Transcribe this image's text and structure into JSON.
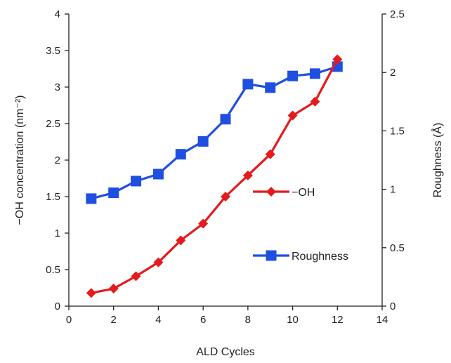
{
  "chart_data": {
    "type": "line",
    "xlabel": "ALD Cycles",
    "ylabel_left": "−OH concentration (nm⁻²)",
    "ylabel_right": "Roughness (Å)",
    "xlim": [
      0,
      14
    ],
    "ylim_left": [
      0,
      4
    ],
    "ylim_right": [
      0,
      2.5
    ],
    "x_ticks": [
      "0",
      "2",
      "4",
      "6",
      "8",
      "10",
      "12",
      "14"
    ],
    "y_left_ticks": [
      "0",
      "0.5",
      "1",
      "1.5",
      "2",
      "2.5",
      "3",
      "3.5",
      "4"
    ],
    "y_right_ticks": [
      "0",
      "0.5",
      "1",
      "1.5",
      "2",
      "2.5"
    ],
    "grid": false,
    "legend_position": "center-right",
    "series": [
      {
        "name": "−OH",
        "axis": "left",
        "marker": "diamond",
        "color": "#e41a1c",
        "x": [
          1,
          2,
          3,
          4,
          5,
          6,
          7,
          8,
          9,
          10,
          11,
          12
        ],
        "y": [
          0.18,
          0.24,
          0.41,
          0.6,
          0.9,
          1.13,
          1.5,
          1.79,
          2.08,
          2.61,
          2.8,
          3.38
        ]
      },
      {
        "name": "Roughness",
        "axis": "right",
        "marker": "square",
        "color": "#1f4fe0",
        "x": [
          1,
          2,
          3,
          4,
          5,
          6,
          7,
          8,
          9,
          10,
          11,
          12
        ],
        "y": [
          0.92,
          0.97,
          1.07,
          1.13,
          1.3,
          1.41,
          1.6,
          1.9,
          1.87,
          1.97,
          1.99,
          2.05
        ]
      }
    ]
  }
}
